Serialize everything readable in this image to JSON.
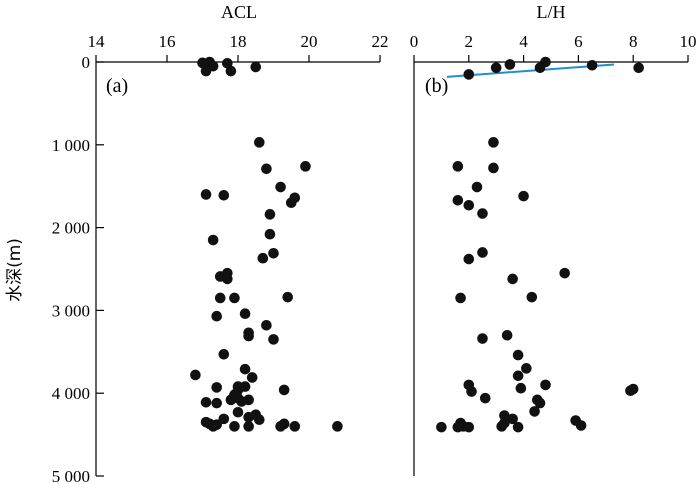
{
  "chart_data": [
    {
      "type": "scatter",
      "panel_label": "(a)",
      "xlabel": "ACL",
      "ylabel": "水深(m)",
      "xlim": [
        14,
        22
      ],
      "ylim": [
        0,
        5000
      ],
      "y_inverted": true,
      "x_axis_position": "top",
      "xticks": [
        14,
        16,
        18,
        20,
        22
      ],
      "xtick_labels": [
        "14",
        "16",
        "18",
        "20",
        "22"
      ],
      "yticks": [
        0,
        1000,
        2000,
        3000,
        4000,
        5000
      ],
      "ytick_labels": [
        "0",
        "1 000",
        "2 000",
        "3 000",
        "4 000",
        "5 000"
      ],
      "marker_color": "#111111",
      "points": [
        {
          "x": 17.0,
          "y": 10
        },
        {
          "x": 17.2,
          "y": 0
        },
        {
          "x": 17.1,
          "y": 110
        },
        {
          "x": 17.3,
          "y": 50
        },
        {
          "x": 17.7,
          "y": 15
        },
        {
          "x": 17.8,
          "y": 110
        },
        {
          "x": 18.5,
          "y": 60
        },
        {
          "x": 18.6,
          "y": 970
        },
        {
          "x": 19.9,
          "y": 1260
        },
        {
          "x": 18.8,
          "y": 1290
        },
        {
          "x": 19.2,
          "y": 1510
        },
        {
          "x": 17.1,
          "y": 1600
        },
        {
          "x": 17.6,
          "y": 1610
        },
        {
          "x": 19.6,
          "y": 1640
        },
        {
          "x": 19.5,
          "y": 1700
        },
        {
          "x": 18.9,
          "y": 1840
        },
        {
          "x": 18.9,
          "y": 2080
        },
        {
          "x": 17.3,
          "y": 2150
        },
        {
          "x": 19.0,
          "y": 2310
        },
        {
          "x": 18.7,
          "y": 2370
        },
        {
          "x": 17.7,
          "y": 2550
        },
        {
          "x": 17.5,
          "y": 2590
        },
        {
          "x": 17.7,
          "y": 2620
        },
        {
          "x": 17.5,
          "y": 2850
        },
        {
          "x": 17.9,
          "y": 2850
        },
        {
          "x": 19.4,
          "y": 2840
        },
        {
          "x": 18.2,
          "y": 3040
        },
        {
          "x": 17.4,
          "y": 3070
        },
        {
          "x": 18.8,
          "y": 3180
        },
        {
          "x": 18.3,
          "y": 3270
        },
        {
          "x": 18.3,
          "y": 3310
        },
        {
          "x": 19.0,
          "y": 3350
        },
        {
          "x": 17.6,
          "y": 3530
        },
        {
          "x": 18.2,
          "y": 3710
        },
        {
          "x": 16.8,
          "y": 3780
        },
        {
          "x": 18.4,
          "y": 3810
        },
        {
          "x": 18.0,
          "y": 3920
        },
        {
          "x": 18.2,
          "y": 3920
        },
        {
          "x": 17.4,
          "y": 3930
        },
        {
          "x": 19.3,
          "y": 3960
        },
        {
          "x": 18.0,
          "y": 3960
        },
        {
          "x": 17.9,
          "y": 4020
        },
        {
          "x": 18.0,
          "y": 4060
        },
        {
          "x": 17.8,
          "y": 4080
        },
        {
          "x": 18.3,
          "y": 4080
        },
        {
          "x": 18.1,
          "y": 4100
        },
        {
          "x": 17.1,
          "y": 4110
        },
        {
          "x": 17.4,
          "y": 4120
        },
        {
          "x": 18.0,
          "y": 4230
        },
        {
          "x": 18.5,
          "y": 4260
        },
        {
          "x": 18.3,
          "y": 4290
        },
        {
          "x": 17.6,
          "y": 4310
        },
        {
          "x": 18.6,
          "y": 4320
        },
        {
          "x": 17.1,
          "y": 4350
        },
        {
          "x": 17.2,
          "y": 4370
        },
        {
          "x": 17.4,
          "y": 4380
        },
        {
          "x": 19.3,
          "y": 4370
        },
        {
          "x": 17.3,
          "y": 4400
        },
        {
          "x": 18.3,
          "y": 4400
        },
        {
          "x": 17.9,
          "y": 4400
        },
        {
          "x": 19.2,
          "y": 4400
        },
        {
          "x": 19.6,
          "y": 4400
        },
        {
          "x": 20.8,
          "y": 4400
        }
      ]
    },
    {
      "type": "scatter",
      "panel_label": "(b)",
      "xlabel": "L/H",
      "xlim": [
        0,
        10
      ],
      "ylim": [
        0,
        5000
      ],
      "y_inverted": true,
      "x_axis_position": "top",
      "xticks": [
        0,
        2,
        4,
        6,
        8,
        10
      ],
      "xtick_labels": [
        "0",
        "2",
        "4",
        "6",
        "8",
        "10"
      ],
      "marker_color": "#111111",
      "line_color": "#1f8fd0",
      "trend_line": [
        {
          "x": 1.2,
          "y": 180
        },
        {
          "x": 7.3,
          "y": 30
        }
      ],
      "points": [
        {
          "x": 2.0,
          "y": 150
        },
        {
          "x": 3.0,
          "y": 70
        },
        {
          "x": 3.5,
          "y": 30
        },
        {
          "x": 4.6,
          "y": 70
        },
        {
          "x": 4.8,
          "y": 0
        },
        {
          "x": 6.5,
          "y": 40
        },
        {
          "x": 8.2,
          "y": 70
        },
        {
          "x": 2.9,
          "y": 970
        },
        {
          "x": 1.6,
          "y": 1260
        },
        {
          "x": 2.9,
          "y": 1280
        },
        {
          "x": 2.3,
          "y": 1510
        },
        {
          "x": 4.0,
          "y": 1620
        },
        {
          "x": 1.6,
          "y": 1670
        },
        {
          "x": 2.0,
          "y": 1730
        },
        {
          "x": 2.5,
          "y": 1830
        },
        {
          "x": 2.5,
          "y": 2300
        },
        {
          "x": 2.0,
          "y": 2380
        },
        {
          "x": 5.5,
          "y": 2550
        },
        {
          "x": 3.6,
          "y": 2620
        },
        {
          "x": 1.7,
          "y": 2850
        },
        {
          "x": 4.3,
          "y": 2840
        },
        {
          "x": 3.4,
          "y": 3300
        },
        {
          "x": 2.5,
          "y": 3340
        },
        {
          "x": 3.8,
          "y": 3540
        },
        {
          "x": 4.1,
          "y": 3700
        },
        {
          "x": 3.8,
          "y": 3790
        },
        {
          "x": 2.0,
          "y": 3900
        },
        {
          "x": 4.8,
          "y": 3900
        },
        {
          "x": 2.1,
          "y": 3980
        },
        {
          "x": 3.9,
          "y": 3940
        },
        {
          "x": 8.0,
          "y": 3950
        },
        {
          "x": 7.9,
          "y": 3970
        },
        {
          "x": 4.5,
          "y": 4080
        },
        {
          "x": 2.6,
          "y": 4060
        },
        {
          "x": 4.6,
          "y": 4120
        },
        {
          "x": 4.4,
          "y": 4220
        },
        {
          "x": 3.3,
          "y": 4270
        },
        {
          "x": 3.6,
          "y": 4310
        },
        {
          "x": 5.9,
          "y": 4330
        },
        {
          "x": 1.7,
          "y": 4360
        },
        {
          "x": 3.3,
          "y": 4360
        },
        {
          "x": 3.2,
          "y": 4400
        },
        {
          "x": 1.0,
          "y": 4410
        },
        {
          "x": 1.8,
          "y": 4400
        },
        {
          "x": 2.0,
          "y": 4410
        },
        {
          "x": 1.6,
          "y": 4410
        },
        {
          "x": 3.8,
          "y": 4410
        },
        {
          "x": 6.1,
          "y": 4390
        }
      ]
    }
  ]
}
